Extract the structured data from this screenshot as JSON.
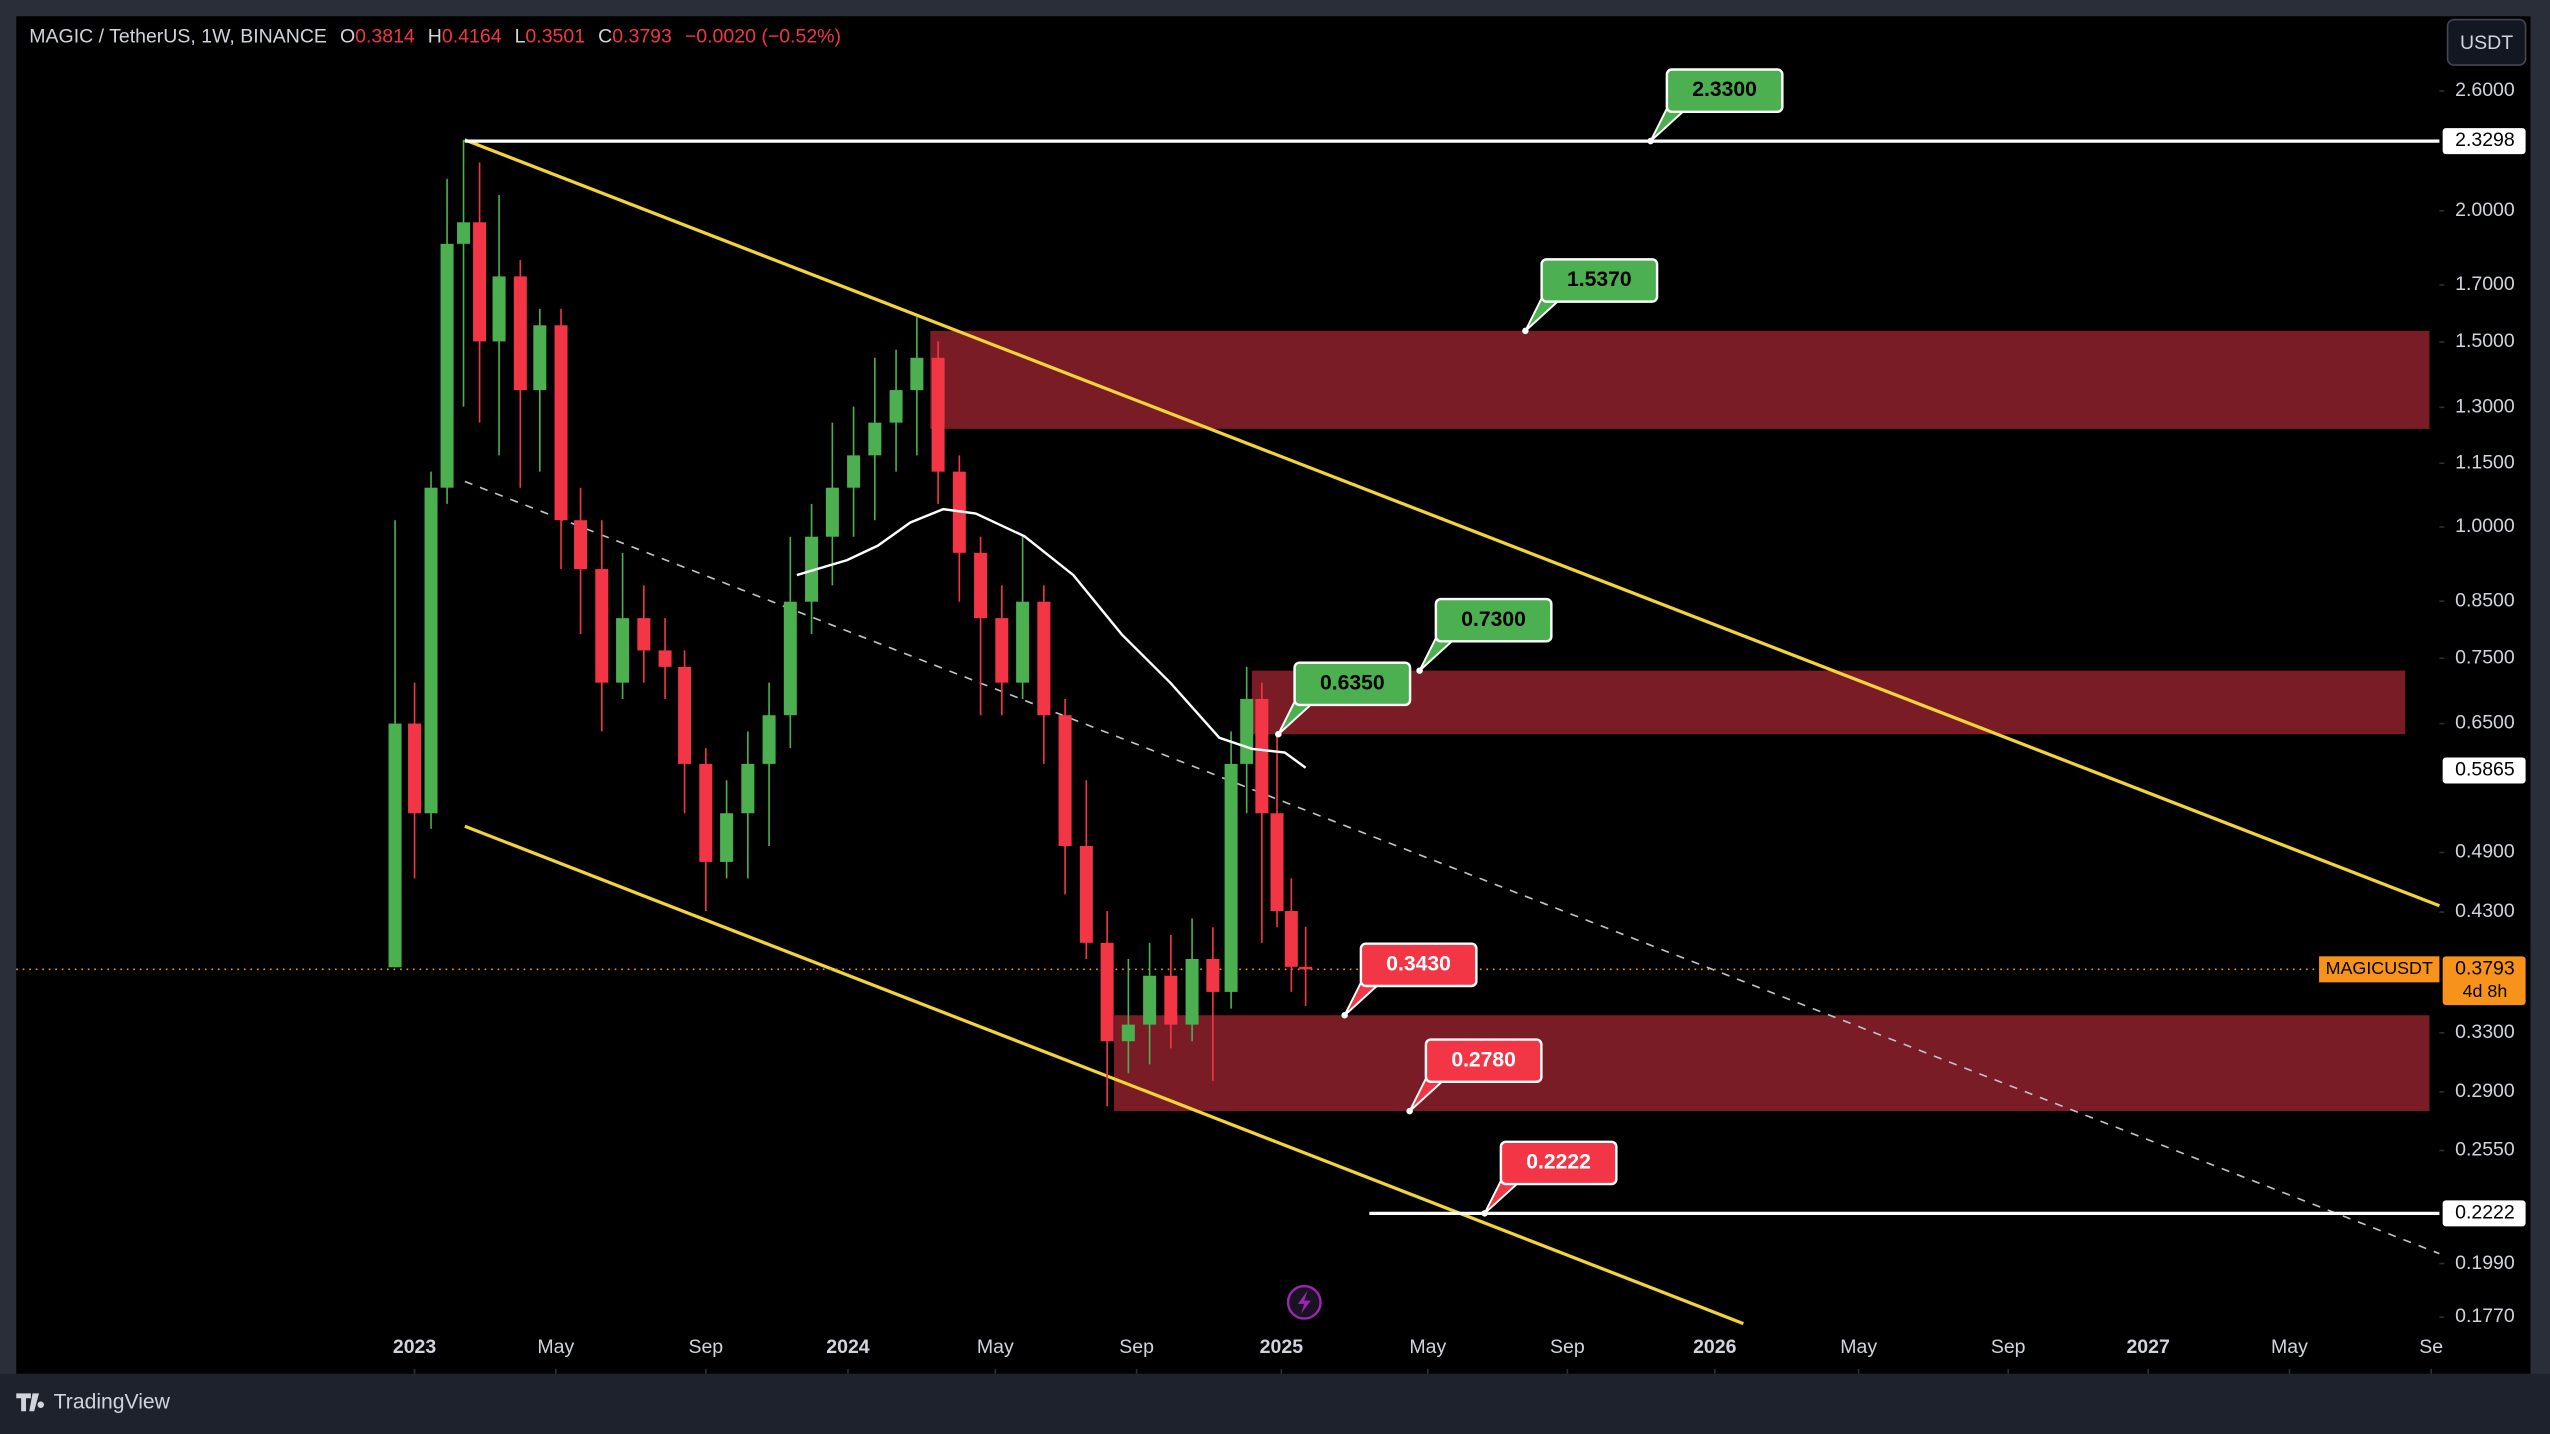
{
  "chart_data": {
    "type": "candlestick",
    "title": "MAGIC / TetherUS, 1W, BINANCE",
    "ohlc_header": [
      {
        "label": "O",
        "value": "0.3814"
      },
      {
        "label": "H",
        "value": "0.4164"
      },
      {
        "label": "L",
        "value": "0.3501"
      },
      {
        "label": "C",
        "value": "0.3793"
      }
    ],
    "change": "−0.0020 (−0.52%)",
    "currency": "USDT",
    "brand": "TradingView",
    "log_y": true,
    "grid": false,
    "up_color": "#4caf50",
    "down_color": "#f23645",
    "x": [
      2022.955,
      2023.0,
      2023.038,
      2023.075,
      2023.113,
      2023.15,
      2023.195,
      2023.244,
      2023.289,
      2023.338,
      2023.383,
      2023.432,
      2023.48,
      2023.529,
      2023.578,
      2023.623,
      2023.672,
      2023.72,
      2023.769,
      2023.818,
      2023.867,
      2023.916,
      2023.964,
      2024.013,
      2024.062,
      2024.111,
      2024.159,
      2024.208,
      2024.257,
      2024.306,
      2024.355,
      2024.403,
      2024.452,
      2024.501,
      2024.55,
      2024.598,
      2024.647,
      2024.696,
      2024.745,
      2024.794,
      2024.842,
      2024.884,
      2024.92,
      2024.955,
      2024.99,
      2025.023,
      2025.056
    ],
    "open": [
      0.381,
      0.65,
      0.534,
      1.09,
      1.86,
      1.95,
      1.502,
      1.732,
      1.35,
      1.556,
      1.015,
      0.912,
      0.711,
      0.819,
      0.763,
      0.736,
      0.595,
      0.48,
      0.534,
      0.595,
      0.662,
      0.849,
      0.979,
      1.09,
      1.17,
      1.257,
      1.35,
      1.449,
      1.129,
      0.945,
      0.819,
      0.711,
      0.849,
      0.662,
      0.497,
      0.402,
      0.324,
      0.336,
      0.374,
      0.336,
      0.388,
      0.361,
      0.595,
      0.686,
      0.534,
      0.431,
      0.3814
    ],
    "high": [
      1.015,
      0.711,
      1.129,
      2.145,
      2.336,
      2.223,
      2.07,
      1.795,
      1.613,
      1.613,
      1.09,
      1.015,
      0.945,
      0.88,
      0.819,
      0.763,
      0.616,
      0.574,
      0.639,
      0.711,
      0.979,
      1.052,
      1.257,
      1.302,
      1.449,
      1.475,
      1.584,
      1.502,
      1.17,
      0.979,
      0.88,
      0.979,
      0.88,
      0.686,
      0.574,
      0.431,
      0.388,
      0.402,
      0.409,
      0.424,
      0.416,
      0.639,
      0.736,
      0.711,
      0.639,
      0.463,
      0.4164
    ],
    "low": [
      0.381,
      0.463,
      0.516,
      1.052,
      1.302,
      1.257,
      1.17,
      1.09,
      1.129,
      0.912,
      0.791,
      0.639,
      0.686,
      0.711,
      0.686,
      0.534,
      0.431,
      0.463,
      0.463,
      0.497,
      0.616,
      0.791,
      0.88,
      0.979,
      1.015,
      1.129,
      1.17,
      1.052,
      0.849,
      0.662,
      0.662,
      0.686,
      0.595,
      0.447,
      0.388,
      0.281,
      0.302,
      0.308,
      0.319,
      0.324,
      0.297,
      0.348,
      0.534,
      0.402,
      0.416,
      0.361,
      0.3501
    ],
    "close": [
      0.65,
      0.534,
      1.09,
      1.86,
      1.95,
      1.502,
      1.732,
      1.35,
      1.556,
      1.015,
      0.912,
      0.711,
      0.819,
      0.763,
      0.736,
      0.595,
      0.48,
      0.534,
      0.595,
      0.662,
      0.849,
      0.979,
      1.09,
      1.17,
      1.257,
      1.35,
      1.449,
      1.129,
      0.945,
      0.819,
      0.711,
      0.849,
      0.662,
      0.497,
      0.402,
      0.324,
      0.336,
      0.374,
      0.336,
      0.388,
      0.361,
      0.595,
      0.686,
      0.534,
      0.431,
      0.3814,
      0.3793
    ],
    "ma": {
      "color": "#ffffff",
      "x": [
        2023.882,
        2023.998,
        2024.069,
        2024.144,
        2024.22,
        2024.295,
        2024.407,
        2024.52,
        2024.632,
        2024.745,
        2024.857,
        2024.932,
        2025.008,
        2025.056
      ],
      "values": [
        0.9,
        0.93,
        0.96,
        1.01,
        1.04,
        1.03,
        0.98,
        0.9,
        0.79,
        0.71,
        0.63,
        0.615,
        0.61,
        0.59
      ],
      "last": 0.5865
    },
    "xlim": [
      2022.081,
      2027.672
    ],
    "xticks": [
      {
        "value": 2023,
        "label": "2023"
      },
      {
        "value": 2023.326,
        "label": "May"
      },
      {
        "value": 2023.672,
        "label": "Sep"
      },
      {
        "value": 2024,
        "label": "2024"
      },
      {
        "value": 2024.34,
        "label": "May"
      },
      {
        "value": 2024.666,
        "label": "Sep"
      },
      {
        "value": 2025,
        "label": "2025"
      },
      {
        "value": 2025.338,
        "label": "May"
      },
      {
        "value": 2025.66,
        "label": "Sep"
      },
      {
        "value": 2026,
        "label": "2026"
      },
      {
        "value": 2026.332,
        "label": "May"
      },
      {
        "value": 2026.677,
        "label": "Sep"
      },
      {
        "value": 2027,
        "label": "2027"
      },
      {
        "value": 2027.326,
        "label": "May"
      },
      {
        "value": 2027.653,
        "label": "Se"
      }
    ],
    "ylim": [
      0.1563,
      3.063
    ],
    "yticks": [
      {
        "value": 2.6,
        "label": "2.6000"
      },
      {
        "value": 2.0,
        "label": "2.0000"
      },
      {
        "value": 1.7,
        "label": "1.7000"
      },
      {
        "value": 1.5,
        "label": "1.5000"
      },
      {
        "value": 1.3,
        "label": "1.3000"
      },
      {
        "value": 1.15,
        "label": "1.1500"
      },
      {
        "value": 1.0,
        "label": "1.0000"
      },
      {
        "value": 0.85,
        "label": "0.8500"
      },
      {
        "value": 0.75,
        "label": "0.7500"
      },
      {
        "value": 0.65,
        "label": "0.6500"
      },
      {
        "value": 0.49,
        "label": "0.4900"
      },
      {
        "value": 0.43,
        "label": "0.4300"
      },
      {
        "value": 0.33,
        "label": "0.3300"
      },
      {
        "value": 0.29,
        "label": "0.2900"
      },
      {
        "value": 0.255,
        "label": "0.2550"
      },
      {
        "value": 0.199,
        "label": "0.1990"
      },
      {
        "value": 0.177,
        "label": "0.1770"
      }
    ],
    "zones": [
      {
        "x0": 2024.19,
        "x1": 2027.649,
        "top": 1.537,
        "bottom": 1.24
      },
      {
        "x0": 2024.932,
        "x1": 2027.593,
        "top": 0.73,
        "bottom": 0.635
      },
      {
        "x0": 2024.614,
        "x1": 2027.649,
        "top": 0.343,
        "bottom": 0.278
      }
    ],
    "zone_color": "#7f1d27",
    "trendlines": [
      {
        "x": [
          2023.116,
          2027.672
        ],
        "y": [
          2.336,
          0.436
        ],
        "color": "#f2d33a",
        "dashed": false
      },
      {
        "x": [
          2023.116,
          2026.066
        ],
        "y": [
          0.519,
          0.1745
        ],
        "color": "#f2d33a",
        "dashed": false
      },
      {
        "x": [
          2023.116,
          2027.672
        ],
        "y": [
          1.105,
          0.2034
        ],
        "color": "#bfc3cc",
        "dashed": true
      }
    ],
    "levels": [
      {
        "x0": 2023.116,
        "value": 2.3298
      },
      {
        "x0": 2025.203,
        "value": 0.2222
      }
    ],
    "annotations": [
      {
        "label": "2.3300",
        "value": 2.33,
        "x": 2025.852,
        "color": "#4caf50"
      },
      {
        "label": "1.5370",
        "value": 1.537,
        "x": 2025.563,
        "color": "#4caf50"
      },
      {
        "label": "0.7300",
        "value": 0.73,
        "x": 2025.319,
        "color": "#4caf50"
      },
      {
        "label": "0.6350",
        "value": 0.635,
        "x": 2024.993,
        "color": "#4caf50"
      },
      {
        "label": "0.3430",
        "value": 0.343,
        "x": 2025.146,
        "color": "#f23645"
      },
      {
        "label": "0.2780",
        "value": 0.278,
        "x": 2025.296,
        "color": "#f23645"
      },
      {
        "label": "0.2222",
        "value": 0.2222,
        "x": 2025.469,
        "color": "#f23645"
      }
    ],
    "last_price": {
      "value": 0.3793,
      "symbol": "MAGICUSDT",
      "countdown": "4d 8h",
      "color": "#f7931a"
    }
  }
}
